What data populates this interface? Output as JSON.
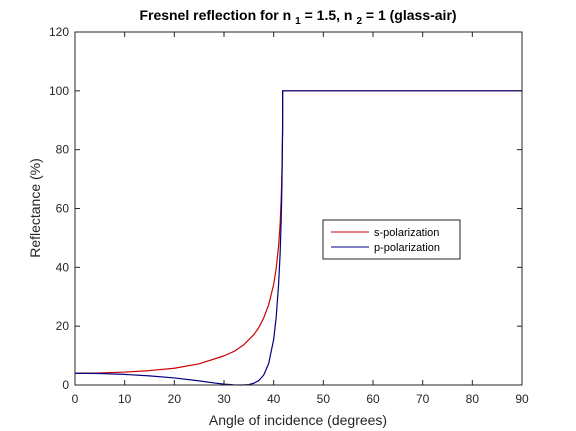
{
  "chart_data": {
    "type": "line",
    "title": {
      "prefix": "Fresnel reflection for n",
      "sub1": "1",
      "mid": " = 1.5, n",
      "sub2": "2",
      "suffix": " = 1 (glass-air)"
    },
    "xlabel": "Angle of incidence (degrees)",
    "ylabel": "Reflectance (%)",
    "xlim": [
      0,
      90
    ],
    "ylim": [
      0,
      120
    ],
    "xticks": [
      0,
      10,
      20,
      30,
      40,
      50,
      60,
      70,
      80,
      90
    ],
    "yticks": [
      0,
      20,
      40,
      60,
      80,
      100,
      120
    ],
    "grid": false,
    "legend_position": "center-right",
    "series": [
      {
        "name": "s-polarization",
        "color": "#cc0000",
        "x": [
          0,
          5,
          10,
          15,
          20,
          25,
          30,
          32,
          34,
          36,
          37,
          38,
          39,
          40,
          40.5,
          41,
          41.3,
          41.5,
          41.6,
          41.7,
          41.8,
          41.81,
          45,
          50,
          60,
          70,
          80,
          90
        ],
        "y": [
          4.0,
          4.1,
          4.4,
          4.9,
          5.7,
          7.2,
          9.9,
          11.4,
          13.7,
          17.1,
          19.5,
          22.8,
          27.3,
          34.2,
          39.5,
          47.3,
          54.7,
          62.4,
          67.9,
          75.4,
          88.0,
          100,
          100,
          100,
          100,
          100,
          100,
          100
        ]
      },
      {
        "name": "p-polarization",
        "color": "#000080",
        "x": [
          0,
          5,
          10,
          15,
          20,
          25,
          28,
          30,
          32,
          33.69,
          35,
          36,
          37,
          38,
          39,
          40,
          40.5,
          41,
          41.3,
          41.5,
          41.6,
          41.7,
          41.8,
          41.81,
          45,
          50,
          60,
          70,
          80,
          90
        ],
        "y": [
          4.0,
          3.9,
          3.6,
          3.1,
          2.4,
          1.4,
          0.7,
          0.3,
          0.05,
          0.0,
          0.15,
          0.6,
          1.5,
          3.4,
          7.3,
          15.5,
          22.9,
          34.4,
          44.6,
          55.5,
          62.4,
          72.1,
          87.2,
          100,
          100,
          100,
          100,
          100,
          100,
          100
        ]
      }
    ]
  }
}
